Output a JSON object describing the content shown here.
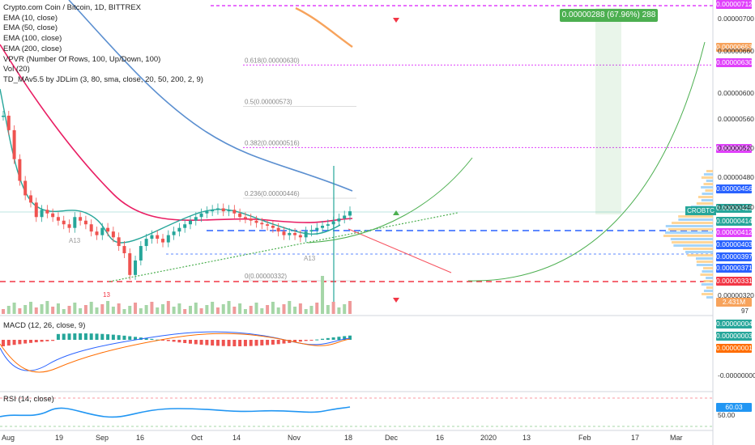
{
  "legend": {
    "title": "Crypto.com Coin / Bitcoin, 1D, BITTREX",
    "lines": [
      "EMA (10, close)",
      "EMA (50, close)",
      "EMA (100, close)",
      "EMA (200, close)",
      "VPVR (Number Of Rows, 100, Up/Down, 100)",
      "Vol (20)",
      "TD_MAv5.5 by JDLim (3, 80, sma, close, 20, 50, 200, 2, 9)"
    ]
  },
  "macd_label": "MACD (12, 26, close, 9)",
  "rsi_label": "RSI (14, close)",
  "profit_box": "0.00000288 (67.96%) 288",
  "symbol_tag": "CROBTC",
  "vol_label": "2.431M",
  "vol_label2": "97",
  "colors": {
    "up": "#26a69a",
    "down": "#ef5350",
    "ema10": "#26a69a",
    "ema50": "#e91e63",
    "ema100": "#5b8fd0",
    "ema200": "#f7a35c",
    "fib": "#e040fb",
    "red_line": "#f23645",
    "blue_line": "#2962ff",
    "green_curve": "#4caf50",
    "rsi": "#2196f3",
    "profit": "#4caf50"
  },
  "chart_data": {
    "type": "line",
    "price_axis_ticks": [
      "0.00000700",
      "0.00000660",
      "0.00000600",
      "0.00000560",
      "0.00000520",
      "0.00000480",
      "0.00000440",
      "0.00000320"
    ],
    "price_badges": [
      {
        "text": "0.00000712",
        "color": "#e040fb"
      },
      {
        "text": "0.00000653",
        "color": "#f7a35c"
      },
      {
        "text": "0.00000630",
        "color": "#e040fb"
      },
      {
        "text": "0.00000516",
        "color": "#e040fb"
      },
      {
        "text": "0.00000456",
        "color": "#2962ff"
      },
      {
        "text": "0.00000428",
        "color": "#26a69a"
      },
      {
        "text": "0.00000414",
        "color": "#26a69a"
      },
      {
        "text": "0.00000412",
        "color": "#e040fb"
      },
      {
        "text": "0.00000403",
        "color": "#2962ff"
      },
      {
        "text": "0.00000397",
        "color": "#2962ff"
      },
      {
        "text": "0.00000371",
        "color": "#2962ff"
      },
      {
        "text": "0.00000331",
        "color": "#f23645"
      }
    ],
    "fib_levels": [
      {
        "label": "0.618(0.00000630)",
        "value": 6.3e-06
      },
      {
        "label": "0.5(0.00000573)",
        "value": 5.73e-06
      },
      {
        "label": "0.382(0.00000516)",
        "value": 5.16e-06
      },
      {
        "label": "0.236(0.00000446)",
        "value": 4.46e-06
      },
      {
        "label": "0(0.00000332)",
        "value": 3.32e-06
      }
    ],
    "x_ticks": [
      "Aug",
      "19",
      "Sep",
      "16",
      "Oct",
      "14",
      "Nov",
      "18",
      "Dec",
      "16",
      "2020",
      "13",
      "Feb",
      "17",
      "Mar"
    ],
    "macd_axis": [
      "0.00000004",
      "0.00000003",
      "0.00000001",
      "-0.00000000"
    ],
    "rsi_value": "60.03",
    "rsi_axis": [
      "50.00"
    ],
    "td_labels": [
      "13",
      "A13",
      "A13"
    ],
    "close": [
      5.6e-06,
      5.4e-06,
      5e-06,
      4.7e-06,
      4.5e-06,
      4.4e-06,
      4.2e-06,
      4.3e-06,
      4.25e-06,
      4.2e-06,
      4.15e-06,
      4.1e-06,
      4.05e-06,
      4.2e-06,
      4.15e-06,
      4.1e-06,
      4e-06,
      3.95e-06,
      4.05e-06,
      4e-06,
      3.92e-06,
      3.8e-06,
      3.7e-06,
      3.4e-06,
      3.6e-06,
      3.8e-06,
      3.9e-06,
      3.95e-06,
      3.9e-06,
      3.85e-06,
      3.95e-06,
      4e-06,
      4.05e-06,
      4.1e-06,
      4.15e-06,
      4.2e-06,
      4.25e-06,
      4.28e-06,
      4.3e-06,
      4.32e-06,
      4.28e-06,
      4.3e-06,
      4.25e-06,
      4.2e-06,
      4.18e-06,
      4.15e-06,
      4.12e-06,
      4.1e-06,
      4.08e-06,
      4.05e-06,
      4e-06,
      3.95e-06,
      3.98e-06,
      3.95e-06,
      3.92e-06,
      4e-06,
      4.02e-06,
      4.05e-06,
      4.08e-06,
      4.1e-06,
      4.14e-06,
      4.18e-06,
      4.22e-06,
      4.28e-06
    ]
  }
}
